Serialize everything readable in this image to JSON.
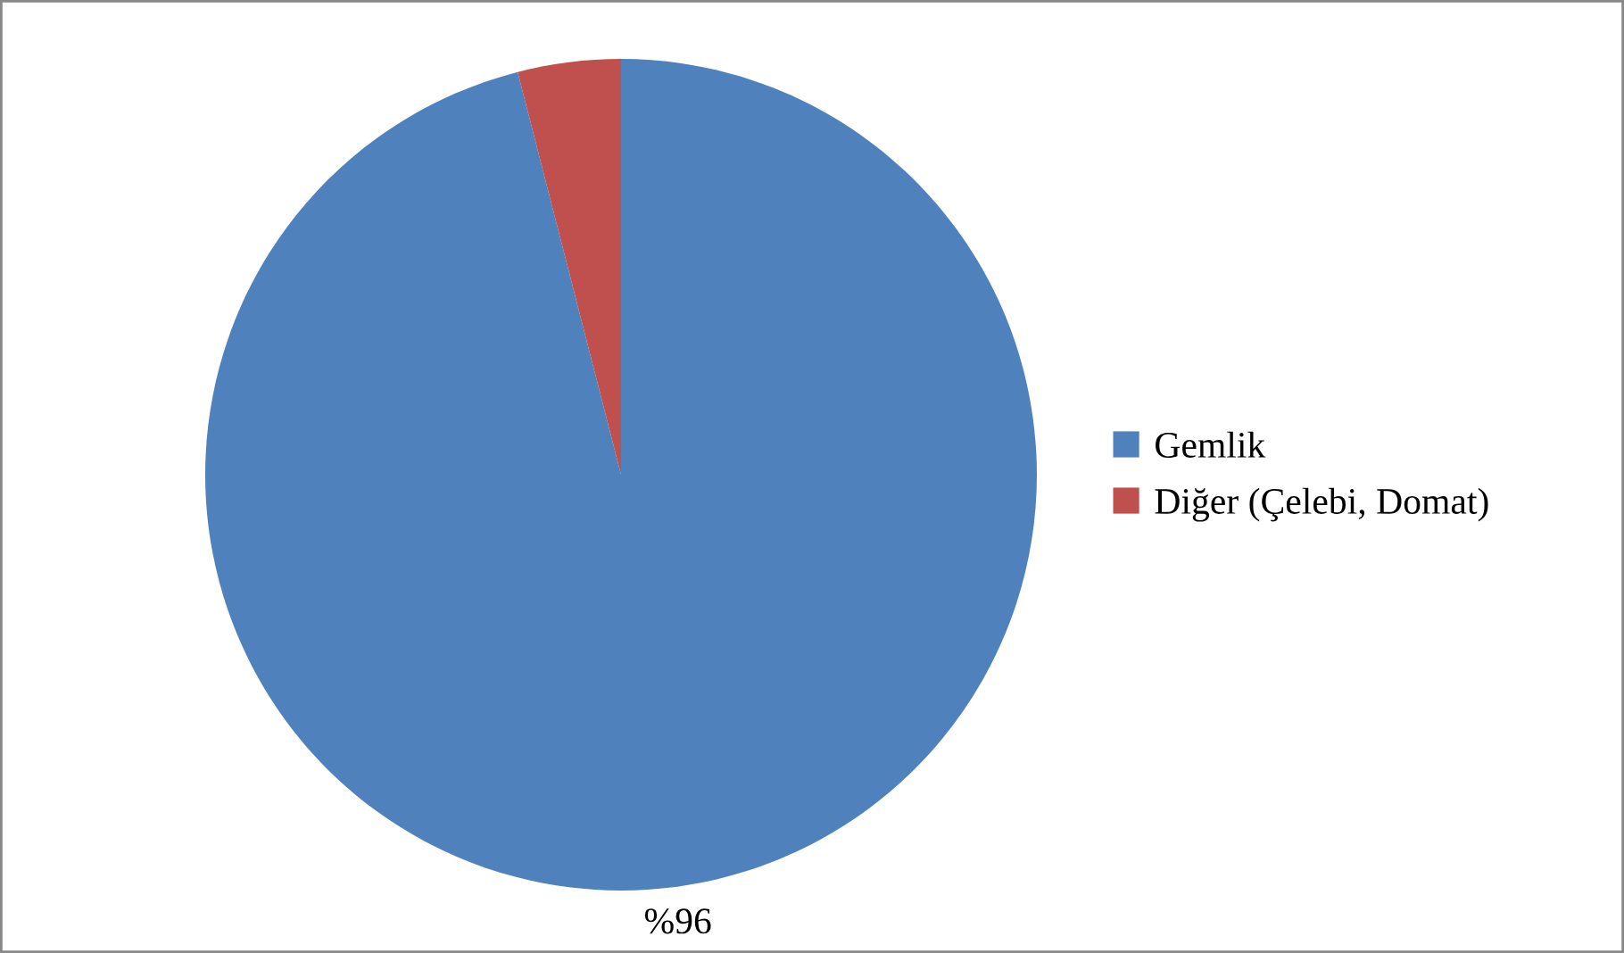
{
  "chart_data": {
    "type": "pie",
    "categories": [
      "Gemlik",
      "Diğer (Çelebi, Domat)"
    ],
    "values": [
      96,
      4
    ],
    "colors": [
      "#4f81bd",
      "#c0504d"
    ],
    "value_labels": [
      "%96",
      null
    ],
    "legend": "right"
  }
}
